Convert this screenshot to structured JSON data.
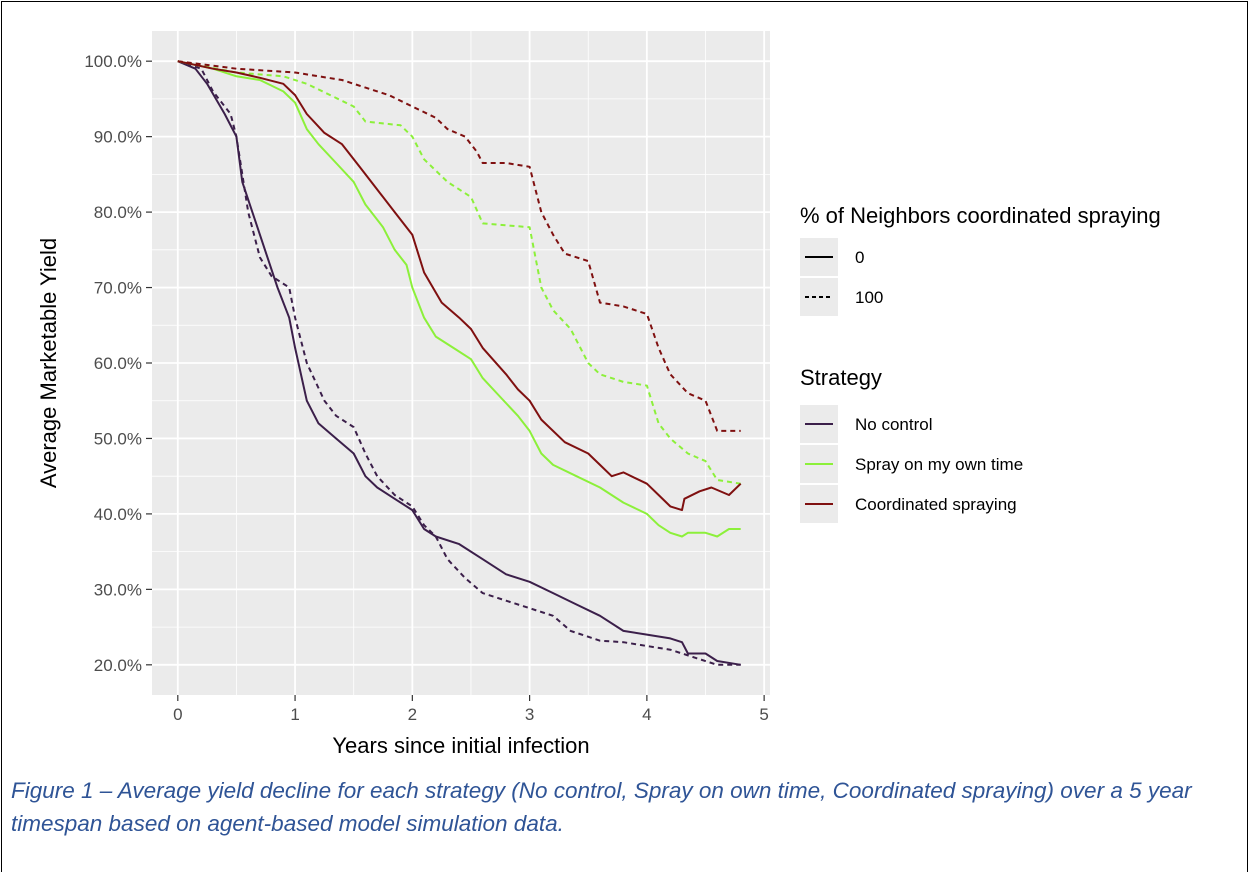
{
  "chart_data": {
    "type": "line",
    "xlabel": "Years since initial infection",
    "ylabel": "Average Marketable Yield",
    "xlim": [
      -0.22,
      5.05
    ],
    "ylim": [
      0.16,
      1.04
    ],
    "x_ticks": [
      0,
      1,
      2,
      3,
      4,
      5
    ],
    "x_tick_labels": [
      "0",
      "1",
      "2",
      "3",
      "4",
      "5"
    ],
    "y_ticks": [
      0.2,
      0.3,
      0.4,
      0.5,
      0.6,
      0.7,
      0.8,
      0.9,
      1.0
    ],
    "y_tick_labels": [
      "20.0%",
      "30.0%",
      "40.0%",
      "50.0%",
      "60.0%",
      "70.0%",
      "80.0%",
      "90.0%",
      "100.0%"
    ],
    "grid": true,
    "legend_placement": "right",
    "legends": [
      {
        "title": "% of Neighbors coordinated spraying",
        "kind": "linetype",
        "entries": [
          {
            "label": "0",
            "dash": "solid"
          },
          {
            "label": "100",
            "dash": "dashed"
          }
        ]
      },
      {
        "title": "Strategy",
        "kind": "color",
        "entries": [
          {
            "label": "No control",
            "color": "#3b1f4a"
          },
          {
            "label": "Spray on my own time",
            "color": "#8cf03a"
          },
          {
            "label": "Coordinated spraying",
            "color": "#7f1010"
          }
        ]
      }
    ],
    "series": [
      {
        "strategy": "No control",
        "neighbors": "0",
        "color": "#3b1f4a",
        "dash": "solid",
        "points": [
          [
            0,
            1.0
          ],
          [
            0.15,
            0.99
          ],
          [
            0.25,
            0.97
          ],
          [
            0.4,
            0.93
          ],
          [
            0.5,
            0.9
          ],
          [
            0.55,
            0.84
          ],
          [
            0.7,
            0.77
          ],
          [
            0.85,
            0.7
          ],
          [
            0.95,
            0.66
          ],
          [
            1.0,
            0.62
          ],
          [
            1.1,
            0.55
          ],
          [
            1.2,
            0.52
          ],
          [
            1.35,
            0.5
          ],
          [
            1.5,
            0.48
          ],
          [
            1.6,
            0.45
          ],
          [
            1.7,
            0.435
          ],
          [
            1.85,
            0.42
          ],
          [
            2.0,
            0.405
          ],
          [
            2.1,
            0.38
          ],
          [
            2.2,
            0.37
          ],
          [
            2.4,
            0.36
          ],
          [
            2.6,
            0.34
          ],
          [
            2.8,
            0.32
          ],
          [
            3.0,
            0.31
          ],
          [
            3.2,
            0.295
          ],
          [
            3.4,
            0.28
          ],
          [
            3.6,
            0.265
          ],
          [
            3.8,
            0.245
          ],
          [
            4.0,
            0.24
          ],
          [
            4.2,
            0.235
          ],
          [
            4.3,
            0.23
          ],
          [
            4.35,
            0.215
          ],
          [
            4.5,
            0.215
          ],
          [
            4.6,
            0.205
          ],
          [
            4.8,
            0.2
          ]
        ]
      },
      {
        "strategy": "No control",
        "neighbors": "100",
        "color": "#3b1f4a",
        "dash": "dashed",
        "points": [
          [
            0,
            1.0
          ],
          [
            0.2,
            0.99
          ],
          [
            0.3,
            0.96
          ],
          [
            0.45,
            0.93
          ],
          [
            0.5,
            0.9
          ],
          [
            0.6,
            0.8
          ],
          [
            0.7,
            0.74
          ],
          [
            0.8,
            0.715
          ],
          [
            0.95,
            0.7
          ],
          [
            1.0,
            0.66
          ],
          [
            1.1,
            0.6
          ],
          [
            1.25,
            0.55
          ],
          [
            1.35,
            0.53
          ],
          [
            1.5,
            0.515
          ],
          [
            1.6,
            0.48
          ],
          [
            1.7,
            0.45
          ],
          [
            1.85,
            0.425
          ],
          [
            2.0,
            0.41
          ],
          [
            2.1,
            0.385
          ],
          [
            2.2,
            0.37
          ],
          [
            2.3,
            0.34
          ],
          [
            2.45,
            0.315
          ],
          [
            2.6,
            0.295
          ],
          [
            2.8,
            0.285
          ],
          [
            3.0,
            0.275
          ],
          [
            3.2,
            0.265
          ],
          [
            3.35,
            0.245
          ],
          [
            3.6,
            0.232
          ],
          [
            3.8,
            0.23
          ],
          [
            4.0,
            0.225
          ],
          [
            4.2,
            0.22
          ],
          [
            4.4,
            0.21
          ],
          [
            4.6,
            0.2
          ],
          [
            4.8,
            0.2
          ]
        ]
      },
      {
        "strategy": "Spray on my own time",
        "neighbors": "0",
        "color": "#8cf03a",
        "dash": "solid",
        "points": [
          [
            0,
            1.0
          ],
          [
            0.3,
            0.99
          ],
          [
            0.5,
            0.98
          ],
          [
            0.7,
            0.975
          ],
          [
            0.9,
            0.96
          ],
          [
            1.0,
            0.945
          ],
          [
            1.1,
            0.91
          ],
          [
            1.2,
            0.89
          ],
          [
            1.35,
            0.865
          ],
          [
            1.5,
            0.84
          ],
          [
            1.6,
            0.81
          ],
          [
            1.75,
            0.78
          ],
          [
            1.85,
            0.75
          ],
          [
            1.95,
            0.73
          ],
          [
            2.0,
            0.7
          ],
          [
            2.1,
            0.66
          ],
          [
            2.2,
            0.635
          ],
          [
            2.35,
            0.62
          ],
          [
            2.5,
            0.605
          ],
          [
            2.6,
            0.58
          ],
          [
            2.75,
            0.555
          ],
          [
            2.9,
            0.53
          ],
          [
            3.0,
            0.51
          ],
          [
            3.1,
            0.48
          ],
          [
            3.2,
            0.465
          ],
          [
            3.4,
            0.45
          ],
          [
            3.6,
            0.435
          ],
          [
            3.8,
            0.415
          ],
          [
            4.0,
            0.4
          ],
          [
            4.1,
            0.385
          ],
          [
            4.2,
            0.375
          ],
          [
            4.3,
            0.37
          ],
          [
            4.35,
            0.375
          ],
          [
            4.5,
            0.375
          ],
          [
            4.6,
            0.37
          ],
          [
            4.7,
            0.38
          ],
          [
            4.8,
            0.38
          ]
        ]
      },
      {
        "strategy": "Spray on my own time",
        "neighbors": "100",
        "color": "#8cf03a",
        "dash": "dashed",
        "points": [
          [
            0,
            1.0
          ],
          [
            0.5,
            0.985
          ],
          [
            0.9,
            0.98
          ],
          [
            1.1,
            0.97
          ],
          [
            1.3,
            0.955
          ],
          [
            1.5,
            0.94
          ],
          [
            1.6,
            0.92
          ],
          [
            1.9,
            0.915
          ],
          [
            2.0,
            0.9
          ],
          [
            2.1,
            0.87
          ],
          [
            2.3,
            0.84
          ],
          [
            2.5,
            0.82
          ],
          [
            2.6,
            0.785
          ],
          [
            3.0,
            0.78
          ],
          [
            3.1,
            0.7
          ],
          [
            3.2,
            0.67
          ],
          [
            3.35,
            0.645
          ],
          [
            3.5,
            0.6
          ],
          [
            3.6,
            0.585
          ],
          [
            3.8,
            0.575
          ],
          [
            4.0,
            0.57
          ],
          [
            4.1,
            0.52
          ],
          [
            4.2,
            0.5
          ],
          [
            4.35,
            0.48
          ],
          [
            4.5,
            0.47
          ],
          [
            4.6,
            0.445
          ],
          [
            4.8,
            0.44
          ]
        ]
      },
      {
        "strategy": "Coordinated spraying",
        "neighbors": "0",
        "color": "#7f1010",
        "dash": "solid",
        "points": [
          [
            0,
            1.0
          ],
          [
            0.3,
            0.99
          ],
          [
            0.5,
            0.985
          ],
          [
            0.7,
            0.978
          ],
          [
            0.9,
            0.97
          ],
          [
            1.0,
            0.955
          ],
          [
            1.1,
            0.93
          ],
          [
            1.25,
            0.905
          ],
          [
            1.4,
            0.89
          ],
          [
            1.55,
            0.86
          ],
          [
            1.7,
            0.83
          ],
          [
            1.85,
            0.8
          ],
          [
            2.0,
            0.77
          ],
          [
            2.1,
            0.72
          ],
          [
            2.25,
            0.68
          ],
          [
            2.4,
            0.66
          ],
          [
            2.5,
            0.645
          ],
          [
            2.6,
            0.62
          ],
          [
            2.8,
            0.585
          ],
          [
            2.9,
            0.565
          ],
          [
            3.0,
            0.55
          ],
          [
            3.1,
            0.525
          ],
          [
            3.3,
            0.495
          ],
          [
            3.5,
            0.48
          ],
          [
            3.6,
            0.465
          ],
          [
            3.7,
            0.45
          ],
          [
            3.8,
            0.455
          ],
          [
            4.0,
            0.44
          ],
          [
            4.1,
            0.425
          ],
          [
            4.2,
            0.41
          ],
          [
            4.3,
            0.405
          ],
          [
            4.32,
            0.42
          ],
          [
            4.45,
            0.43
          ],
          [
            4.55,
            0.435
          ],
          [
            4.7,
            0.425
          ],
          [
            4.8,
            0.44
          ]
        ]
      },
      {
        "strategy": "Coordinated spraying",
        "neighbors": "100",
        "color": "#7f1010",
        "dash": "dashed",
        "points": [
          [
            0,
            1.0
          ],
          [
            0.5,
            0.99
          ],
          [
            1.0,
            0.985
          ],
          [
            1.2,
            0.98
          ],
          [
            1.4,
            0.975
          ],
          [
            1.6,
            0.965
          ],
          [
            1.8,
            0.955
          ],
          [
            2.0,
            0.94
          ],
          [
            2.2,
            0.925
          ],
          [
            2.3,
            0.91
          ],
          [
            2.45,
            0.9
          ],
          [
            2.55,
            0.88
          ],
          [
            2.6,
            0.865
          ],
          [
            2.8,
            0.865
          ],
          [
            3.0,
            0.86
          ],
          [
            3.1,
            0.8
          ],
          [
            3.2,
            0.77
          ],
          [
            3.3,
            0.745
          ],
          [
            3.5,
            0.735
          ],
          [
            3.6,
            0.68
          ],
          [
            3.8,
            0.675
          ],
          [
            4.0,
            0.665
          ],
          [
            4.1,
            0.62
          ],
          [
            4.2,
            0.585
          ],
          [
            4.35,
            0.56
          ],
          [
            4.5,
            0.55
          ],
          [
            4.6,
            0.51
          ],
          [
            4.8,
            0.51
          ]
        ]
      }
    ]
  },
  "caption": "Figure 1 – Average yield decline for each strategy (No control, Spray on own time, Coordinated spraying) over a 5 year timespan based on agent-based model simulation data."
}
